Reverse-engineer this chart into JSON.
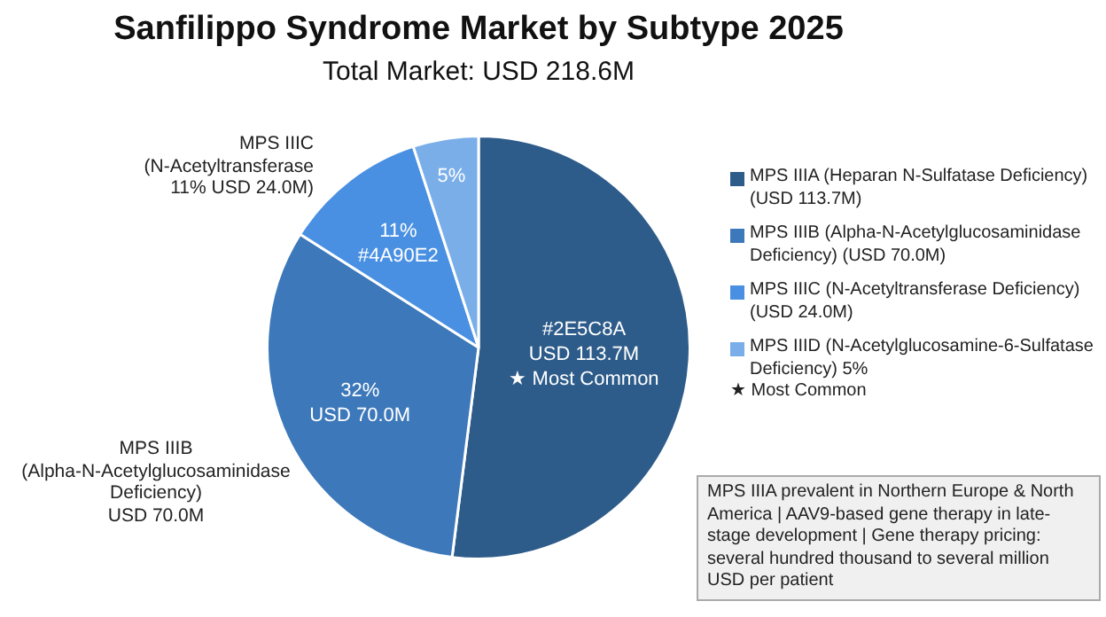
{
  "chart_data": {
    "type": "pie",
    "title": "Sanfilippo Syndrome Market by Subtype 2025",
    "subtitle": "Total Market: USD 218.6M",
    "categories": [
      "MPS IIIA (Heparan N-Sulfatase Deficiency) (USD 113.7M)",
      "MPS IIIB (Alpha-N-Acetylglucosaminidase Deficiency) (USD 70.0M)",
      "MPS IIIC (N-Acetyltransferase Deficiency) (USD 24.0M)",
      "MPS IIID (N-Acetylglucosamine-6-Sulfatase Deficiency) 5%"
    ],
    "values": [
      52,
      32,
      11,
      5
    ],
    "colors": [
      "#2e5c8a",
      "#3d78ba",
      "#4a90e2",
      "#7aaee8"
    ],
    "value_labels": [
      "#2E5C8A\nUSD 113.7M\n★ Most Common",
      "32%\nUSD 70.0M",
      "11%\n#4A90E2",
      "5%"
    ],
    "legend": "right",
    "annotations": [
      "MPS IIIC\n(N-Acetyltransferase\n11% USD 24.0M)",
      "MPS IIIB\n(Alpha-N-Acetylglucosaminidase\nDeficiency)\nUSD 70.0M",
      "★ Most Common",
      "MPS IIIA prevalent in Northern Europe & North America | AAV9-based gene therapy in late-stage development | Gene therapy pricing: several hundred thousand to several million USD per patient"
    ]
  }
}
